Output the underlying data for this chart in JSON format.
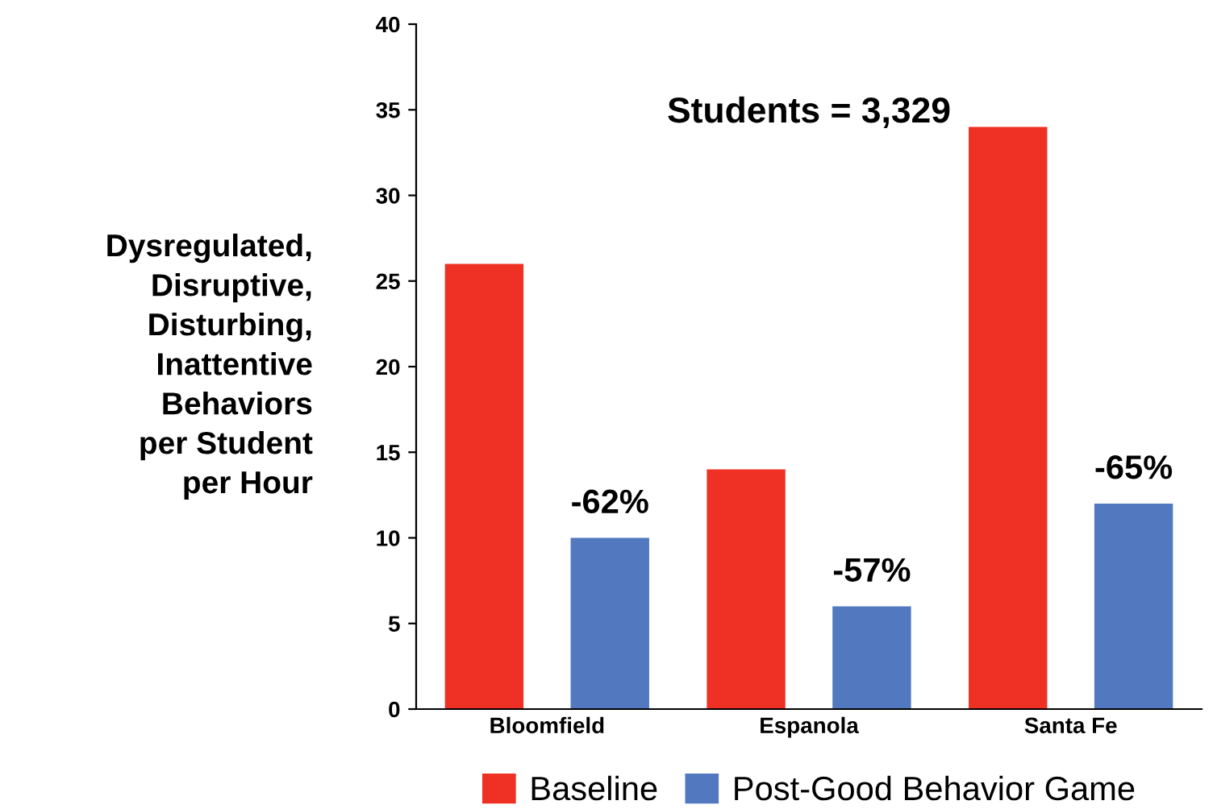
{
  "chart_data": {
    "type": "bar",
    "ylabel": "Dysregulated,\nDisruptive,\nDisturbing,\nInattentive\nBehaviors\nper Student\nper Hour",
    "categories": [
      "Bloomfield",
      "Espanola",
      "Santa Fe"
    ],
    "series": [
      {
        "name": "Baseline",
        "color": "#ee3124",
        "values": [
          26,
          14,
          34
        ]
      },
      {
        "name": "Post-Good Behavior Game",
        "color": "#5279c0",
        "values": [
          10,
          6,
          12
        ]
      }
    ],
    "ylim": [
      0,
      40
    ],
    "yticks": [
      0,
      5,
      10,
      15,
      20,
      25,
      30,
      35,
      40
    ],
    "grid": false,
    "legend": "bottom",
    "annotations": [
      "Students = 3,329",
      "-62%",
      "-57%",
      "-65%"
    ]
  }
}
